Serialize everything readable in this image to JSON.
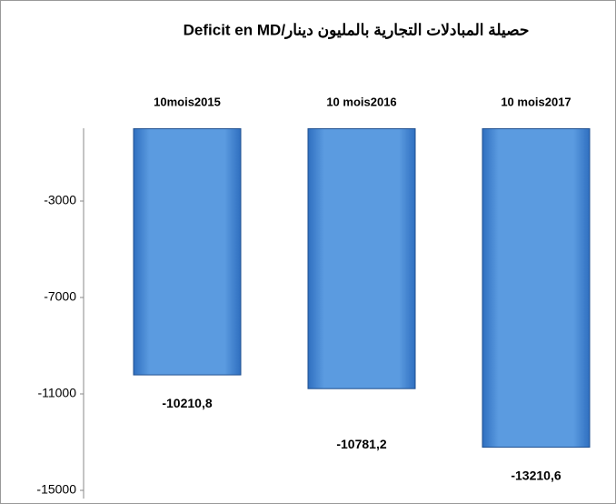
{
  "chart_data": {
    "type": "bar",
    "title": "حصيلة المبادلات التجارية بالمليون دينار/Deficit en MD",
    "categories": [
      "10mois2015",
      "10 mois2016",
      "10 mois2017"
    ],
    "values": [
      -10210.8,
      -10781.2,
      -13210.6
    ],
    "value_labels": [
      "-10210,8",
      "-10781,2",
      "-13210,6"
    ],
    "color": "#5b9be0",
    "ylim": [
      -15000,
      0
    ],
    "yticks": [
      -3000,
      -7000,
      -11000,
      -15000
    ]
  }
}
